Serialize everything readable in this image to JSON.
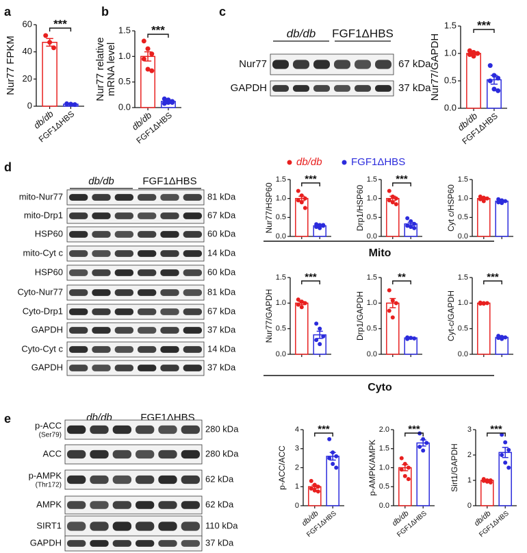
{
  "panel_labels": [
    "a",
    "b",
    "c",
    "d",
    "e"
  ],
  "legend": {
    "series": [
      {
        "name": "db/db",
        "color": "#e8201f"
      },
      {
        "name": "FGF1ΔHBS",
        "color": "#2b2bdc"
      }
    ]
  },
  "groups": [
    "Mito",
    "Cyto"
  ],
  "blots": [
    {
      "groups": [
        "db/db",
        "FGF1ΔHBS"
      ],
      "rows": [
        {
          "label": "Nur77",
          "size": "67 kDa"
        },
        {
          "label": "GAPDH",
          "size": "37 kDa"
        }
      ]
    },
    {
      "groups": [
        "db/db",
        "FGF1ΔHBS"
      ],
      "rows": [
        {
          "label": "mito-Nur77",
          "size": "81 kDa"
        },
        {
          "label": "mito-Drp1",
          "size": "67 kDa"
        },
        {
          "label": "HSP60",
          "size": "60 kDa"
        },
        {
          "label": "mito-Cyt c",
          "size": "14 kDa"
        },
        {
          "label": "HSP60",
          "size": "60 kDa"
        },
        {
          "label": "Cyto-Nur77",
          "size": "81 kDa"
        },
        {
          "label": "Cyto-Drp1",
          "size": "67 kDa"
        },
        {
          "label": "GAPDH",
          "size": "37 kDa"
        },
        {
          "label": "Cyto-Cyt c",
          "size": "14 kDa"
        },
        {
          "label": "GAPDH",
          "size": "37 kDa"
        }
      ]
    },
    {
      "groups": [
        "db/db",
        "FGF1ΔHBS"
      ],
      "rows": [
        {
          "label": "p-ACC",
          "sublabel": "(Ser79)",
          "size": "280 kDa"
        },
        {
          "label": "ACC",
          "size": "280 kDa"
        },
        {
          "label": "p-AMPK",
          "sublabel": "(Thr172)",
          "size": "62 kDa"
        },
        {
          "label": "AMPK",
          "size": "62 kDa"
        },
        {
          "label": "SIRT1",
          "size": "110 kDa"
        },
        {
          "label": "GAPDH",
          "size": "37 kDa"
        }
      ]
    }
  ],
  "chart_data": [
    {
      "type": "bar",
      "ylabel": "Nur77 FPKM",
      "categories": [
        "db/db",
        "FGF1ΔHBS"
      ],
      "values": [
        47,
        1.5
      ],
      "errors": [
        2.8,
        0.3
      ],
      "points": [
        [
          52,
          47,
          43
        ],
        [
          1.8,
          1.5,
          1.2
        ]
      ],
      "colors": [
        "#e8201f",
        "#2b2bdc"
      ],
      "ylim": [
        0,
        60
      ],
      "yticks": [
        0,
        20,
        40,
        60
      ],
      "significance": "***"
    },
    {
      "type": "bar",
      "ylabel": [
        "Nur77 relative",
        "mRNA level"
      ],
      "categories": [
        "db/db",
        "FGF1ΔHBS"
      ],
      "values": [
        1.0,
        0.12
      ],
      "errors": [
        0.09,
        0.015
      ],
      "points": [
        [
          1.3,
          1.15,
          1.05,
          0.95,
          0.75,
          0.72
        ],
        [
          0.17,
          0.1,
          0.12,
          0.08,
          0.15,
          0.1
        ]
      ],
      "colors": [
        "#e8201f",
        "#2b2bdc"
      ],
      "ylim": [
        0,
        1.5
      ],
      "yticks": [
        {
          "value": 0,
          "label": "0.0"
        },
        {
          "value": 0.5,
          "label": "0.5"
        },
        {
          "value": 1,
          "label": "1.0"
        },
        {
          "value": 1.5,
          "label": "1.5"
        }
      ],
      "significance": "***"
    },
    {
      "type": "bar",
      "ylabel": "Nur77/GAPDH",
      "categories": [
        "db/db",
        "FGF1ΔHBS"
      ],
      "values": [
        1.0,
        0.52
      ],
      "errors": [
        0.02,
        0.08
      ],
      "points": [
        [
          1.05,
          1.02,
          1.0,
          0.98,
          0.95,
          1.0
        ],
        [
          0.78,
          0.6,
          0.55,
          0.5,
          0.35,
          0.32
        ]
      ],
      "colors": [
        "#e8201f",
        "#2b2bdc"
      ],
      "ylim": [
        0,
        1.5
      ],
      "yticks": [
        {
          "value": 0,
          "label": "0.0"
        },
        {
          "value": 0.5,
          "label": "0.5"
        },
        {
          "value": 1,
          "label": "1.0"
        },
        {
          "value": 1.5,
          "label": "1.5"
        }
      ],
      "significance": "***"
    },
    {
      "type": "bar",
      "ylabel": "Nur77/HSP60",
      "values": [
        1.0,
        0.28
      ],
      "errors": [
        0.06,
        0.015
      ],
      "points": [
        [
          1.2,
          1.08,
          1.0,
          0.95,
          0.9,
          0.75
        ],
        [
          0.32,
          0.3,
          0.28,
          0.25,
          0.22,
          0.3
        ]
      ],
      "colors": [
        "#e8201f",
        "#2b2bdc"
      ],
      "ylim": [
        0,
        1.5
      ],
      "yticks": [
        {
          "value": 0,
          "label": "0.0"
        },
        {
          "value": 0.5,
          "label": "0.5"
        },
        {
          "value": 1,
          "label": "1.0"
        },
        {
          "value": 1.5,
          "label": "1.5"
        }
      ],
      "significance": "***"
    },
    {
      "type": "bar",
      "ylabel": "Drp1/HSP60",
      "values": [
        1.0,
        0.33
      ],
      "errors": [
        0.06,
        0.04
      ],
      "points": [
        [
          1.2,
          1.05,
          1.0,
          0.95,
          0.9,
          0.85
        ],
        [
          0.48,
          0.4,
          0.33,
          0.28,
          0.25,
          0.22
        ]
      ],
      "colors": [
        "#e8201f",
        "#2b2bdc"
      ],
      "ylim": [
        0,
        1.5
      ],
      "yticks": [
        {
          "value": 0,
          "label": "0.0"
        },
        {
          "value": 0.5,
          "label": "0.5"
        },
        {
          "value": 1,
          "label": "1.0"
        },
        {
          "value": 1.5,
          "label": "1.5"
        }
      ],
      "significance": "***"
    },
    {
      "type": "bar",
      "ylabel": "Cyt c/HSP60",
      "values": [
        1.0,
        0.93
      ],
      "errors": [
        0.03,
        0.02
      ],
      "points": [
        [
          1.05,
          1.02,
          1.0,
          0.98,
          0.93
        ],
        [
          0.98,
          0.95,
          0.93,
          0.9,
          0.88
        ]
      ],
      "colors": [
        "#e8201f",
        "#2b2bdc"
      ],
      "ylim": [
        0,
        1.5
      ],
      "yticks": [
        {
          "value": 0,
          "label": "0.0"
        },
        {
          "value": 0.5,
          "label": "0.5"
        },
        {
          "value": 1,
          "label": "1.0"
        },
        {
          "value": 1.5,
          "label": "1.5"
        }
      ]
    },
    {
      "type": "bar",
      "ylabel": "Nur77/GAPDH",
      "values": [
        1.0,
        0.38
      ],
      "errors": [
        0.03,
        0.07
      ],
      "points": [
        [
          1.07,
          1.03,
          1.0,
          0.97,
          0.92
        ],
        [
          0.6,
          0.5,
          0.35,
          0.28,
          0.2
        ]
      ],
      "colors": [
        "#e8201f",
        "#2b2bdc"
      ],
      "ylim": [
        0,
        1.5
      ],
      "yticks": [
        {
          "value": 0,
          "label": "0.0"
        },
        {
          "value": 0.5,
          "label": "0.5"
        },
        {
          "value": 1,
          "label": "1.0"
        },
        {
          "value": 1.5,
          "label": "1.5"
        }
      ],
      "significance": "***"
    },
    {
      "type": "bar",
      "ylabel": "Drp1/GAPDH",
      "values": [
        1.0,
        0.32
      ],
      "errors": [
        0.09,
        0.01
      ],
      "points": [
        [
          1.25,
          1.05,
          1.0,
          0.85,
          0.72
        ],
        [
          0.33,
          0.32,
          0.31,
          0.3,
          0.32
        ]
      ],
      "colors": [
        "#e8201f",
        "#2b2bdc"
      ],
      "ylim": [
        0,
        1.5
      ],
      "yticks": [
        {
          "value": 0,
          "label": "0.0"
        },
        {
          "value": 0.5,
          "label": "0.5"
        },
        {
          "value": 1,
          "label": "1.0"
        },
        {
          "value": 1.5,
          "label": "1.5"
        }
      ],
      "significance": "**"
    },
    {
      "type": "bar",
      "ylabel": "Cyt-c/GAPDH",
      "values": [
        1.0,
        0.33
      ],
      "errors": [
        0.005,
        0.01
      ],
      "points": [
        [
          1.01,
          1.0,
          1.0,
          0.99,
          0.99
        ],
        [
          0.36,
          0.34,
          0.33,
          0.32,
          0.3
        ]
      ],
      "colors": [
        "#e8201f",
        "#2b2bdc"
      ],
      "ylim": [
        0,
        1.5
      ],
      "yticks": [
        {
          "value": 0,
          "label": "0.0"
        },
        {
          "value": 0.5,
          "label": "0.5"
        },
        {
          "value": 1,
          "label": "1.0"
        },
        {
          "value": 1.5,
          "label": "1.5"
        }
      ],
      "significance": "***"
    },
    {
      "type": "bar",
      "ylabel": "p-ACC/ACC",
      "categories": [
        "db/db",
        "FGF1ΔHBS"
      ],
      "values": [
        1.0,
        2.6
      ],
      "errors": [
        0.08,
        0.2
      ],
      "points": [
        [
          1.3,
          1.1,
          1.0,
          0.9,
          0.8,
          0.75
        ],
        [
          3.5,
          2.8,
          2.6,
          2.5,
          2.2,
          2.0
        ]
      ],
      "colors": [
        "#e8201f",
        "#2b2bdc"
      ],
      "ylim": [
        0,
        4
      ],
      "yticks": [
        0,
        1,
        2,
        3,
        4
      ],
      "significance": "***"
    },
    {
      "type": "bar",
      "ylabel": "p-AMPK/AMPK",
      "categories": [
        "db/db",
        "FGF1ΔHBS"
      ],
      "values": [
        1.0,
        1.65
      ],
      "errors": [
        0.08,
        0.08
      ],
      "points": [
        [
          1.25,
          1.1,
          1.0,
          0.95,
          0.78,
          0.7
        ],
        [
          1.9,
          1.75,
          1.65,
          1.55,
          1.45
        ]
      ],
      "colors": [
        "#e8201f",
        "#2b2bdc"
      ],
      "ylim": [
        0,
        2
      ],
      "yticks": [
        {
          "value": 0,
          "label": "0.0"
        },
        {
          "value": 0.5,
          "label": "0.5"
        },
        {
          "value": 1,
          "label": "1.0"
        },
        {
          "value": 1.5,
          "label": "1.5"
        },
        {
          "value": 2,
          "label": "2.0"
        }
      ],
      "significance": "***"
    },
    {
      "type": "bar",
      "ylabel": "Sirt1/GAPDH",
      "categories": [
        "db/db",
        "FGF1ΔHBS"
      ],
      "values": [
        1.0,
        2.1
      ],
      "errors": [
        0.03,
        0.2
      ],
      "points": [
        [
          1.05,
          1.0,
          1.0,
          0.98,
          0.95,
          0.92
        ],
        [
          2.8,
          2.5,
          2.2,
          2.0,
          1.7,
          1.5
        ]
      ],
      "colors": [
        "#e8201f",
        "#2b2bdc"
      ],
      "ylim": [
        0,
        3
      ],
      "yticks": [
        0,
        1,
        2,
        3
      ],
      "significance": "***"
    }
  ]
}
